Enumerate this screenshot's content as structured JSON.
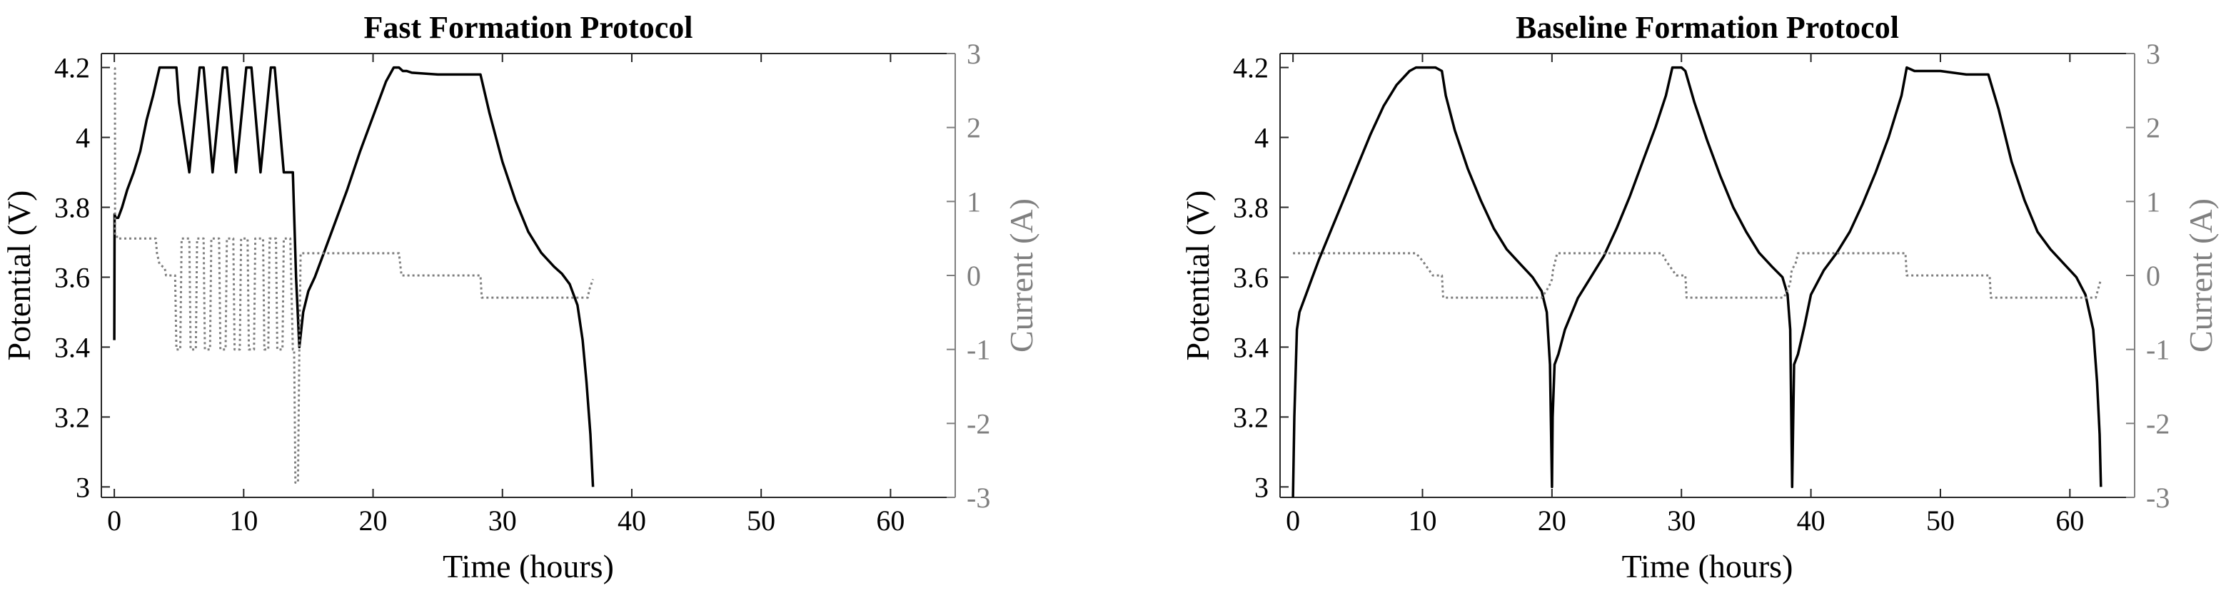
{
  "chart_data": [
    {
      "type": "line",
      "title": "Fast Formation Protocol",
      "xlabel": "Time (hours)",
      "ylabel": "Potential (V)",
      "y2label": "Current (A)",
      "xlim": [
        -1,
        65
      ],
      "ylim": [
        2.97,
        4.24
      ],
      "y2lim": [
        -3,
        3
      ],
      "xticks": [
        "0",
        "10",
        "20",
        "30",
        "40",
        "50",
        "60"
      ],
      "yticks": [
        "3",
        "3.2",
        "3.4",
        "3.6",
        "3.8",
        "4",
        "4.2"
      ],
      "y2ticks": [
        "-3",
        "-2",
        "-1",
        "0",
        "1",
        "2",
        "3"
      ],
      "series": [
        {
          "axis": "left",
          "style": "solid",
          "color": "#000000",
          "x": [
            0,
            0.02,
            0.1,
            0.3,
            0.6,
            1,
            1.5,
            2,
            2.5,
            3,
            3.5,
            3.8,
            4.8,
            5,
            5.8,
            6.6,
            6.9,
            7.6,
            8.4,
            8.7,
            9.4,
            10.2,
            10.6,
            11.3,
            12.1,
            12.4,
            13.1,
            13.8,
            14.05,
            14.3,
            14.6,
            15,
            15.5,
            16,
            17,
            18,
            19,
            20,
            21,
            21.6,
            22,
            22.3,
            22.6,
            23,
            25,
            27,
            28.3,
            29,
            30,
            31,
            32,
            33,
            34,
            34.6,
            35.2,
            35.8,
            36.2,
            36.5,
            36.8,
            37
          ],
          "y": [
            3.42,
            3.78,
            3.77,
            3.77,
            3.8,
            3.85,
            3.9,
            3.96,
            4.05,
            4.12,
            4.2,
            4.2,
            4.2,
            4.1,
            3.9,
            4.2,
            4.2,
            3.9,
            4.2,
            4.2,
            3.9,
            4.2,
            4.2,
            3.9,
            4.2,
            4.2,
            3.9,
            3.9,
            3.6,
            3.4,
            3.5,
            3.56,
            3.6,
            3.65,
            3.75,
            3.85,
            3.96,
            4.06,
            4.16,
            4.2,
            4.2,
            4.19,
            4.19,
            4.185,
            4.18,
            4.18,
            4.18,
            4.07,
            3.93,
            3.82,
            3.73,
            3.67,
            3.63,
            3.61,
            3.58,
            3.52,
            3.42,
            3.3,
            3.15,
            3.0
          ]
        },
        {
          "axis": "right",
          "style": "dotted",
          "color": "#7f7f7f",
          "x": [
            0,
            0.05,
            0.06,
            0.2,
            0.21,
            1,
            3.2,
            3.3,
            3.5,
            3.9,
            4,
            4.7,
            4.8,
            5.1,
            5.2,
            5.8,
            5.9,
            6.3,
            6.4,
            6.9,
            7,
            7.4,
            7.5,
            8.1,
            8.2,
            8.6,
            8.7,
            9.2,
            9.3,
            9.7,
            9.8,
            10.3,
            10.4,
            10.8,
            10.9,
            11.5,
            11.6,
            11.9,
            12,
            12.5,
            12.6,
            13,
            13.1,
            13.6,
            13.8,
            13.9,
            14.0,
            14.1,
            14.2,
            14.3,
            14.4,
            14.5,
            22,
            22.2,
            28.3,
            28.4,
            36.6,
            36.7,
            37
          ],
          "y": [
            2.8,
            2.8,
            0.55,
            0.55,
            0.5,
            0.5,
            0.5,
            0.3,
            0.15,
            0.1,
            0,
            0,
            -1,
            -1,
            0.5,
            0.5,
            -1,
            -1,
            0.5,
            0.5,
            -1,
            -1,
            0.5,
            0.5,
            -1,
            -1,
            0.5,
            0.5,
            -1,
            -1,
            0.5,
            0.5,
            -1,
            -1,
            0.5,
            0.5,
            -1,
            -1,
            0.5,
            0.5,
            -1,
            -1,
            0.5,
            0.5,
            -1,
            -1,
            -2.8,
            -2.8,
            -2.8,
            -1,
            0.3,
            0.3,
            0.3,
            0,
            0,
            -0.3,
            -0.3,
            -0.2,
            -0.05
          ]
        }
      ]
    },
    {
      "type": "line",
      "title": "Baseline Formation Protocol",
      "xlabel": "Time (hours)",
      "ylabel": "Potential (V)",
      "y2label": "Current (A)",
      "xlim": [
        -1,
        65
      ],
      "ylim": [
        2.97,
        4.24
      ],
      "y2lim": [
        -3,
        3
      ],
      "xticks": [
        "0",
        "10",
        "20",
        "30",
        "40",
        "50",
        "60"
      ],
      "yticks": [
        "3",
        "3.2",
        "3.4",
        "3.6",
        "3.8",
        "4",
        "4.2"
      ],
      "y2ticks": [
        "-3",
        "-2",
        "-1",
        "0",
        "1",
        "2",
        "3"
      ],
      "series": [
        {
          "axis": "left",
          "style": "solid",
          "color": "#000000",
          "x": [
            0,
            0.1,
            0.3,
            0.5,
            1,
            1.5,
            2,
            3,
            4,
            5,
            6,
            7,
            8,
            9,
            9.5,
            10,
            11,
            11.5,
            11.8,
            12.5,
            13.5,
            14.5,
            15.5,
            16.5,
            17.5,
            18.5,
            19.2,
            19.6,
            19.85,
            20.0,
            20.05,
            20.2,
            20.5,
            21,
            22,
            23,
            24,
            25,
            26,
            27,
            28,
            28.8,
            29.3,
            30,
            30.3,
            31,
            32,
            33,
            34,
            35,
            36,
            37,
            37.8,
            38.2,
            38.4,
            38.55,
            38.7,
            39,
            39.5,
            40,
            41,
            42,
            43,
            44,
            45,
            46,
            47,
            47.4,
            48,
            50,
            52,
            53.7,
            54.5,
            55.5,
            56.5,
            57.5,
            58.5,
            59.5,
            60.5,
            61.2,
            61.8,
            62.1,
            62.3,
            62.4
          ],
          "y": [
            2.97,
            3.2,
            3.45,
            3.5,
            3.55,
            3.6,
            3.65,
            3.74,
            3.83,
            3.92,
            4.01,
            4.09,
            4.15,
            4.19,
            4.2,
            4.2,
            4.2,
            4.19,
            4.12,
            4.02,
            3.91,
            3.82,
            3.74,
            3.68,
            3.64,
            3.6,
            3.56,
            3.5,
            3.35,
            3.0,
            3.2,
            3.35,
            3.38,
            3.45,
            3.54,
            3.6,
            3.66,
            3.74,
            3.83,
            3.93,
            4.03,
            4.12,
            4.2,
            4.2,
            4.19,
            4.1,
            3.99,
            3.89,
            3.8,
            3.73,
            3.67,
            3.63,
            3.6,
            3.55,
            3.45,
            3.0,
            3.35,
            3.38,
            3.46,
            3.55,
            3.62,
            3.67,
            3.73,
            3.81,
            3.9,
            4.0,
            4.12,
            4.2,
            4.19,
            4.19,
            4.18,
            4.18,
            4.08,
            3.93,
            3.82,
            3.73,
            3.68,
            3.64,
            3.6,
            3.55,
            3.45,
            3.3,
            3.15,
            3.0
          ]
        },
        {
          "axis": "right",
          "style": "dotted",
          "color": "#7f7f7f",
          "x": [
            0,
            9.5,
            10,
            10.8,
            11.5,
            11.6,
            19.2,
            19.6,
            19.9,
            20.0,
            20.1,
            20.2,
            20.4,
            20.5,
            28.5,
            28.8,
            29.6,
            30.3,
            30.4,
            37.9,
            38.2,
            38.4,
            38.5,
            38.6,
            38.8,
            39,
            39.1,
            47.3,
            47.4,
            53.8,
            53.9,
            62,
            62.4
          ],
          "y": [
            0.3,
            0.3,
            0.2,
            0.0,
            0.0,
            -0.3,
            -0.3,
            -0.2,
            -0.1,
            -0.05,
            0.1,
            0.15,
            0.3,
            0.3,
            0.3,
            0.2,
            0,
            0,
            -0.3,
            -0.3,
            -0.2,
            -0.1,
            0.05,
            0.1,
            0.15,
            0.3,
            0.3,
            0.3,
            0,
            0,
            -0.3,
            -0.3,
            -0.05
          ]
        }
      ]
    }
  ]
}
